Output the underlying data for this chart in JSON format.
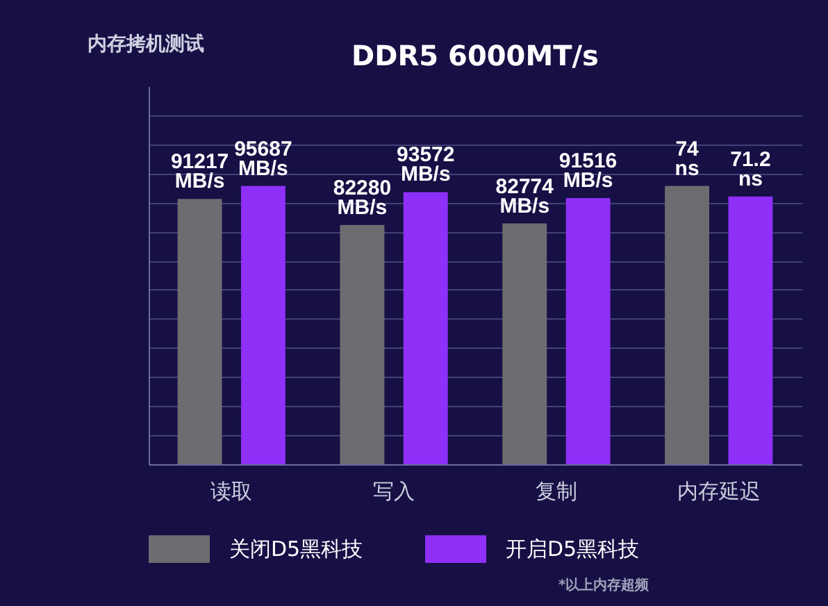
{
  "chart_data": {
    "type": "bar",
    "title": "DDR5 6000MT/s",
    "categories": [
      "读取",
      "写入",
      "复制",
      "内存延迟"
    ],
    "series": [
      {
        "name": "关闭D5黑科技",
        "color": "#6c6c70",
        "values": [
          91217,
          82280,
          82774,
          null
        ],
        "value_labels": [
          "91217 MB/s",
          "82280 MB/s",
          "82774 MB/s",
          null
        ]
      },
      {
        "name": "开启D5黑科技",
        "color": "#8e30f7",
        "values": [
          95687,
          93572,
          91516,
          null
        ],
        "value_labels": [
          "95687 MB/s",
          "93572 MB/s",
          "91516 MB/s",
          null
        ]
      },
      {
        "color": "#6c6c70",
        "axis": "y2",
        "values": [
          null,
          null,
          null,
          74
        ],
        "value_labels": [
          null,
          null,
          null,
          "74 ns"
        ]
      },
      {
        "color": "#8e30f7",
        "axis": "y2",
        "values": [
          null,
          null,
          null,
          71.2
        ],
        "value_labels": [
          null,
          null,
          null,
          "71.2 ns"
        ]
      }
    ],
    "ylim": [
      0,
      130000
    ],
    "yticks": [
      {
        "value": 0,
        "label": null
      },
      {
        "value": 10000,
        "label": null
      },
      {
        "value": 20000,
        "label": null
      },
      {
        "value": 30000,
        "label": null
      },
      {
        "value": 40000,
        "label": null
      },
      {
        "value": 50000,
        "label": null
      },
      {
        "value": 60000,
        "label": null
      },
      {
        "value": 70000,
        "label": null
      },
      {
        "value": 80000,
        "label": null
      },
      {
        "value": 90000,
        "label": null
      },
      {
        "value": 100000,
        "label": null
      },
      {
        "value": 110000,
        "label": null
      },
      {
        "value": 120000,
        "label": null
      }
    ],
    "annotations": [
      "内存拷机测试",
      "*以上内存超频"
    ],
    "grid": "y",
    "legend": "bottom",
    "tick_labels": "x"
  }
}
